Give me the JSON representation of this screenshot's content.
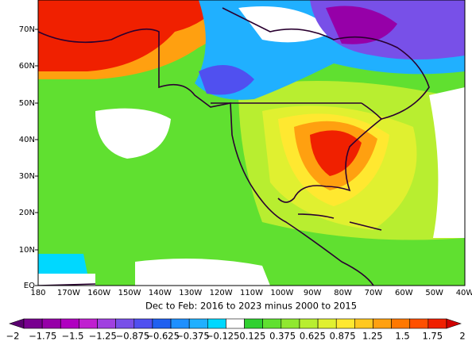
{
  "map": {
    "lat_labels": [
      "70N",
      "60N",
      "50N",
      "40N",
      "30N",
      "20N",
      "10N",
      "EQ"
    ],
    "lon_labels": [
      "180",
      "170W",
      "160W",
      "150W",
      "140W",
      "130W",
      "120W",
      "110W",
      "100W",
      "90W",
      "80W",
      "70W",
      "60W",
      "50W",
      "40W"
    ],
    "caption": "Dec to Feb: 2016 to 2023 minus 2000 to 2015",
    "colorbar": {
      "labels": [
        "−2",
        "−1.75",
        "−1.5",
        "−1.25",
        "−0.875",
        "−0.625",
        "−0.375",
        "−0.125",
        "0.125",
        "0.375",
        "0.625",
        "0.875",
        "1.25",
        "1.5",
        "1.75",
        "2"
      ],
      "colors": [
        "#5a0070",
        "#780090",
        "#9600a8",
        "#b000c0",
        "#c020d0",
        "#a040e0",
        "#7850e8",
        "#5050f0",
        "#2060f0",
        "#1e90ff",
        "#20b0ff",
        "#00d8ff",
        "#ffffff",
        "#30d030",
        "#60e030",
        "#90e830",
        "#b8ee30",
        "#e0f030",
        "#ffe830",
        "#ffc820",
        "#ffa010",
        "#ff7800",
        "#ff5000",
        "#f02000",
        "#d00000"
      ]
    }
  }
}
